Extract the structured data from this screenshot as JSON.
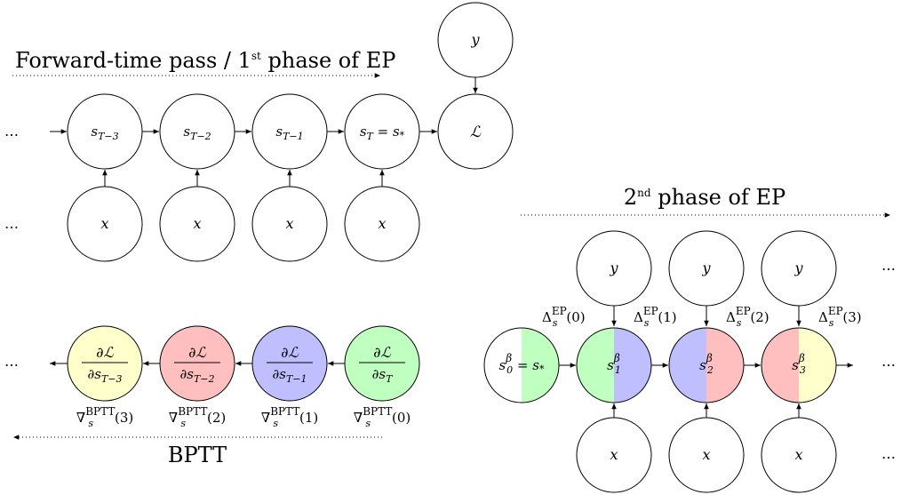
{
  "colors": {
    "green": "#bfffbf",
    "blue": "#bfbfff",
    "red": "#ffbfbf",
    "yellow": "#ffffcc"
  },
  "forward": {
    "title_main": "Forward-time pass / 1",
    "title_sup": "st",
    "title_tail": " phase of EP",
    "ellipsis": "…",
    "states": [
      {
        "base": "s",
        "sub": "T−3",
        "tail": ""
      },
      {
        "base": "s",
        "sub": "T−2",
        "tail": ""
      },
      {
        "base": "s",
        "sub": "T−1",
        "tail": ""
      },
      {
        "base": "s",
        "sub": "T",
        "tail": " = s",
        "tail_sub": "*"
      }
    ],
    "x_label": "x",
    "y_label": "y",
    "loss_label": "ℒ"
  },
  "bptt": {
    "title": "BPTT",
    "ellipsis": "…",
    "nodes": [
      {
        "num": "∂ℒ",
        "den": "∂s",
        "den_sub": "T−3",
        "color": "yellow",
        "grad": "(3)"
      },
      {
        "num": "∂ℒ",
        "den": "∂s",
        "den_sub": "T−2",
        "color": "red",
        "grad": "(2)"
      },
      {
        "num": "∂ℒ",
        "den": "∂s",
        "den_sub": "T−1",
        "color": "blue",
        "grad": "(1)"
      },
      {
        "num": "∂ℒ",
        "den": "∂s",
        "den_sub": "T",
        "color": "green",
        "grad": "(0)"
      }
    ],
    "grad_base": "∇",
    "grad_sub": "s",
    "grad_sup": "BPTT"
  },
  "ep2": {
    "title_main": "2",
    "title_sup": "nd",
    "title_tail": " phase of EP",
    "ellipsis": "…",
    "states": [
      {
        "base": "s",
        "sub": "0",
        "sup": "β",
        "tail": " = s",
        "tail_sub": "*",
        "left": "white",
        "right": "green"
      },
      {
        "base": "s",
        "sub": "1",
        "sup": "β",
        "left": "green",
        "right": "blue"
      },
      {
        "base": "s",
        "sub": "2",
        "sup": "β",
        "left": "blue",
        "right": "red"
      },
      {
        "base": "s",
        "sub": "3",
        "sup": "β",
        "left": "red",
        "right": "yellow"
      }
    ],
    "deltas": [
      {
        "base": "Δ",
        "sub": "s",
        "sup": "EP",
        "arg": "(0)"
      },
      {
        "base": "Δ",
        "sub": "s",
        "sup": "EP",
        "arg": "(1)"
      },
      {
        "base": "Δ",
        "sub": "s",
        "sup": "EP",
        "arg": "(2)"
      },
      {
        "base": "Δ",
        "sub": "s",
        "sup": "EP",
        "arg": "(3)"
      }
    ],
    "x_label": "x",
    "y_label": "y"
  }
}
